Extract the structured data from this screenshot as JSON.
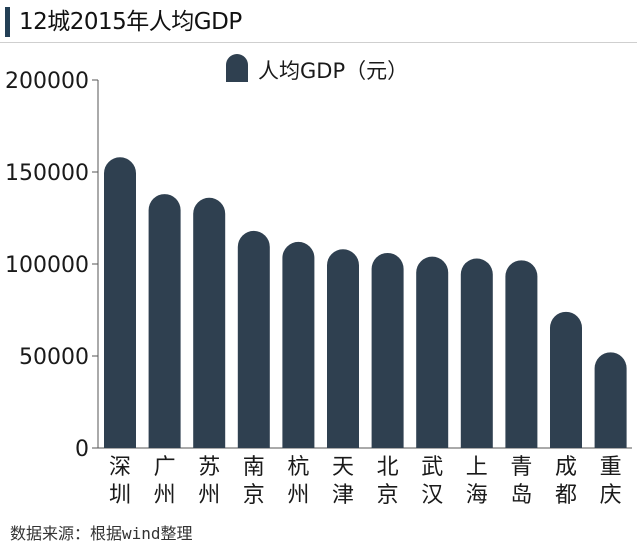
{
  "header": {
    "title": "12城2015年人均GDP"
  },
  "footer": {
    "source": "数据来源：根据wind整理"
  },
  "colors": {
    "bar": "#2f4050",
    "accent": "#233f55",
    "axis": "#555555"
  },
  "chart_data": {
    "type": "bar",
    "title": "12城2015年人均GDP",
    "xlabel": "",
    "ylabel": "",
    "ylim": [
      0,
      200000
    ],
    "yticks": [
      0,
      50000,
      100000,
      150000,
      200000
    ],
    "ytick_labels": [
      "0",
      "50000",
      "100000",
      "150000",
      "200000"
    ],
    "grid": false,
    "legend": {
      "position": "top-center",
      "entries": [
        "人均GDP（元）"
      ]
    },
    "categories": [
      "深圳",
      "广州",
      "苏州",
      "南京",
      "杭州",
      "天津",
      "北京",
      "武汉",
      "上海",
      "青岛",
      "成都",
      "重庆"
    ],
    "series": [
      {
        "name": "人均GDP（元）",
        "values": [
          158000,
          138000,
          136000,
          118000,
          112000,
          108000,
          106000,
          104000,
          103000,
          102000,
          74000,
          52000
        ]
      }
    ]
  }
}
